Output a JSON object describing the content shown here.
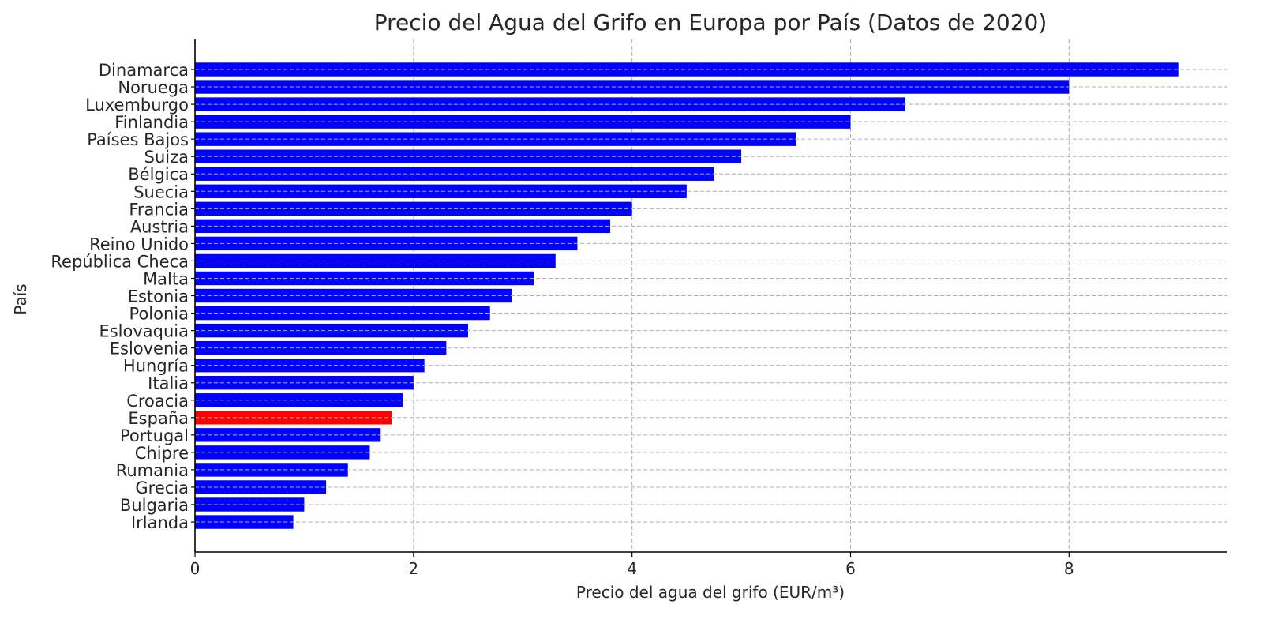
{
  "chart_data": {
    "type": "bar",
    "orientation": "horizontal",
    "title": "Precio del Agua del Grifo en Europa por País (Datos de 2020)",
    "xlabel": "Precio del agua del grifo (EUR/m³)",
    "ylabel": "País",
    "xlim": [
      0,
      9.45
    ],
    "xticks": [
      0,
      2,
      4,
      6,
      8
    ],
    "grid": true,
    "colors": {
      "default": "#0000ff",
      "highlight": "#ff0000",
      "grid": "#b0b0b0",
      "axis": "#000000"
    },
    "highlight": "España",
    "categories": [
      "Dinamarca",
      "Noruega",
      "Luxemburgo",
      "Finlandia",
      "Países Bajos",
      "Suiza",
      "Bélgica",
      "Suecia",
      "Francia",
      "Austria",
      "Reino Unido",
      "República Checa",
      "Malta",
      "Estonia",
      "Polonia",
      "Eslovaquia",
      "Eslovenia",
      "Hungría",
      "Italia",
      "Croacia",
      "España",
      "Portugal",
      "Chipre",
      "Rumania",
      "Grecia",
      "Bulgaria",
      "Irlanda"
    ],
    "values": [
      9.0,
      8.0,
      6.5,
      6.0,
      5.5,
      5.0,
      4.75,
      4.5,
      4.0,
      3.8,
      3.5,
      3.3,
      3.1,
      2.9,
      2.7,
      2.5,
      2.3,
      2.1,
      2.0,
      1.9,
      1.8,
      1.7,
      1.6,
      1.4,
      1.2,
      1.0,
      0.9
    ]
  }
}
